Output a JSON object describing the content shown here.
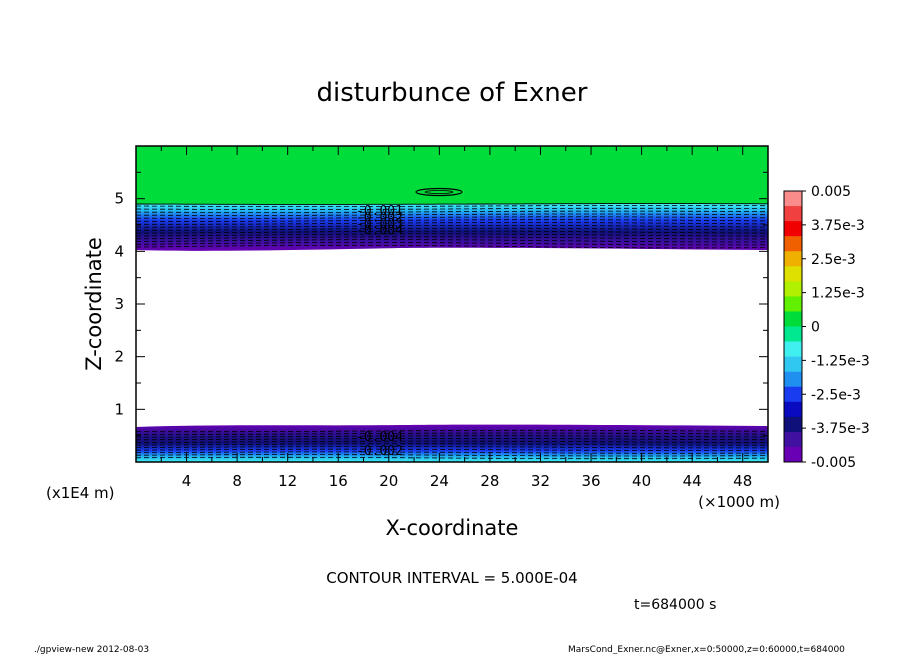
{
  "chart_data": {
    "type": "heatmap",
    "title": "disturbunce of Exner",
    "xlabel": "X-coordinate",
    "ylabel": "Z-coordinate",
    "x_unit": "(×1000 m)",
    "y_unit": "(x1E4 m)",
    "x_ticks": [
      4,
      8,
      12,
      16,
      20,
      24,
      28,
      32,
      36,
      40,
      44,
      48
    ],
    "y_ticks": [
      1,
      2,
      3,
      4,
      5
    ],
    "xlim": [
      0,
      50
    ],
    "ylim": [
      0,
      6
    ],
    "colorbar": {
      "labels": [
        "0.005",
        "3.75e-3",
        "2.5e-3",
        "1.25e-3",
        "0",
        "-1.25e-3",
        "-2.5e-3",
        "-3.75e-3",
        "-0.005"
      ],
      "range": [
        -0.005,
        0.005
      ]
    },
    "contour_labels_upper": [
      "-0.001",
      "-0.002",
      "-0.003",
      "-0.004"
    ],
    "contour_labels_lower": [
      "-0.004",
      "-0.002"
    ],
    "contour_interval": "CONTOUR INTERVAL = 5.000E-04",
    "time_label": "t=684000 s",
    "colors": {
      "green": "#00dd3a",
      "purple": "#6a00b4",
      "navy": "#10107a",
      "blue": "#1a3cf0",
      "cyan": "#3ff0f0"
    }
  },
  "footer": {
    "left": "./gpview-new   2012-08-03",
    "right": "MarsCond_Exner.nc@Exner,x=0:50000,z=0:60000,t=684000"
  }
}
